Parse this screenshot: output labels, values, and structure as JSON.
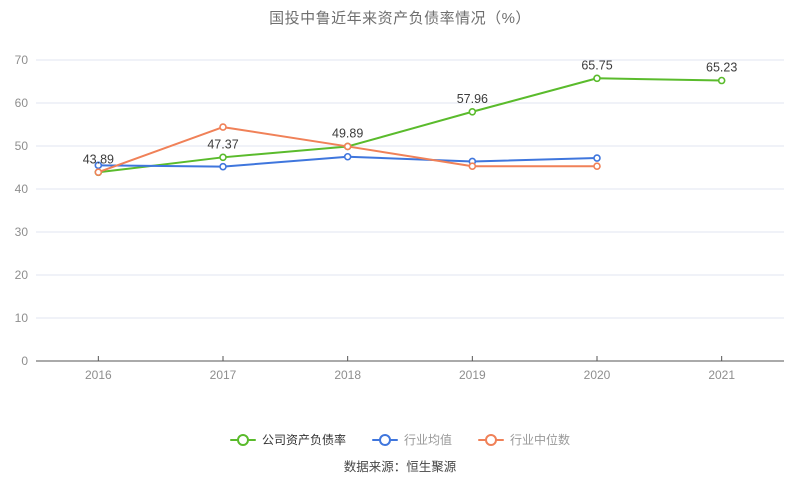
{
  "page": {
    "title": "国投中鲁近年来资产负债率情况（%）",
    "source": "数据来源：恒生聚源"
  },
  "chart_data": {
    "type": "line",
    "title": "国投中鲁近年来资产负债率情况（%）",
    "categories": [
      "2016",
      "2017",
      "2018",
      "2019",
      "2020",
      "2021"
    ],
    "ylim": [
      0,
      70
    ],
    "ytick_interval": 10,
    "grid": true,
    "legend_position": "bottom",
    "label_color": "#3c3c3c",
    "axis": {
      "line_color": "#555555",
      "tick_label_color": "#8e8e8e",
      "grid_color": "#e2e5f2"
    },
    "series": [
      {
        "key": "company-ratio",
        "name": "公司资产负债率",
        "color": "#5abb2c",
        "legend_text_color": "#333333",
        "values": [
          43.89,
          47.37,
          49.89,
          57.96,
          65.75,
          65.23
        ],
        "labels": [
          "43.89",
          "47.37",
          "49.89",
          "57.96",
          "65.75",
          "65.23"
        ]
      },
      {
        "key": "industry-mean",
        "name": "行业均值",
        "color": "#3f76dd",
        "legend_text_color": "#999999",
        "values": [
          45.5,
          45.2,
          47.5,
          46.4,
          47.2,
          null
        ]
      },
      {
        "key": "industry-median",
        "name": "行业中位数",
        "color": "#f08158",
        "legend_text_color": "#999999",
        "values": [
          43.9,
          54.4,
          49.9,
          45.3,
          45.3,
          null
        ]
      }
    ],
    "source": "数据来源：恒生聚源"
  }
}
